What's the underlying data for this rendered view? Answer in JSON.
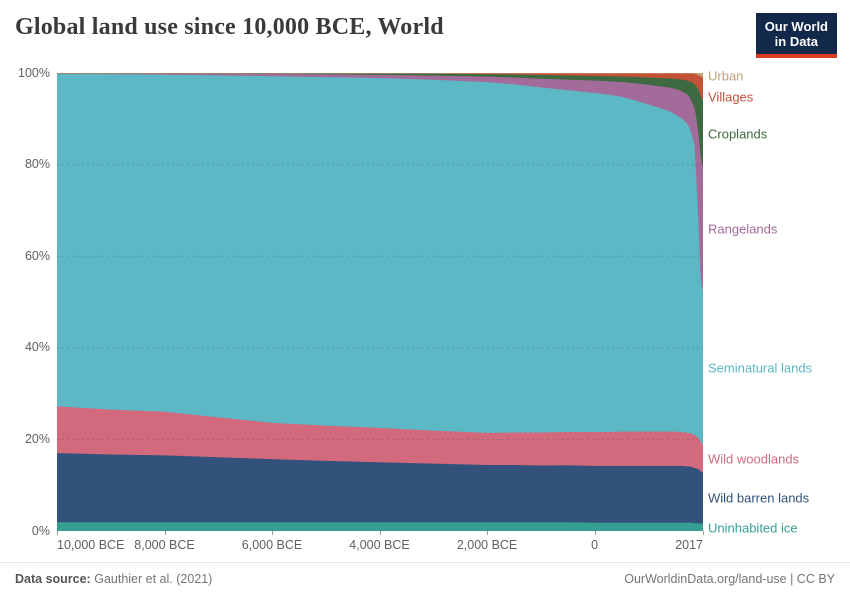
{
  "header": {
    "title": "Global land use since 10,000 BCE, World",
    "logo": {
      "line1": "Our World",
      "line2": "in Data",
      "bg_color": "#12294b",
      "accent_color": "#dc3a23"
    }
  },
  "footer": {
    "source_label": "Data source:",
    "source_value": "Gauthier et al. (2021)",
    "citation": "OurWorldinData.org/land-use | CC BY"
  },
  "chart_data": {
    "type": "area",
    "stacking": "percent",
    "title": "Global land use since 10,000 BCE, World",
    "xlim": [
      -10000,
      2017
    ],
    "ylim": [
      0,
      100
    ],
    "grid": "dashed-horizontal",
    "legend_position": "right-edge-labels",
    "x": [
      -10000,
      -9000,
      -8000,
      -7000,
      -6000,
      -5000,
      -4000,
      -3000,
      -2000,
      -1500,
      -1000,
      -500,
      0,
      250,
      500,
      750,
      1000,
      1200,
      1400,
      1500,
      1600,
      1700,
      1750,
      1800,
      1850,
      1880,
      1900,
      1920,
      1940,
      1950,
      1960,
      1970,
      1980,
      1990,
      2000,
      2010,
      2017
    ],
    "x_ticks": [
      {
        "value": -10000,
        "label": "10,000 BCE"
      },
      {
        "value": -8000,
        "label": "8,000 BCE"
      },
      {
        "value": -6000,
        "label": "6,000 BCE"
      },
      {
        "value": -4000,
        "label": "4,000 BCE"
      },
      {
        "value": -2000,
        "label": "2,000 BCE"
      },
      {
        "value": 0,
        "label": "0"
      },
      {
        "value": 2017,
        "label": "2017"
      }
    ],
    "y_ticks": [
      {
        "value": 0,
        "label": "0%"
      },
      {
        "value": 20,
        "label": "20%"
      },
      {
        "value": 40,
        "label": "40%"
      },
      {
        "value": 60,
        "label": "60%"
      },
      {
        "value": 80,
        "label": "80%"
      },
      {
        "value": 100,
        "label": "100%"
      }
    ],
    "series": [
      {
        "name": "Uninhabited ice",
        "color": "#35a091",
        "values": [
          1.8,
          1.8,
          1.8,
          1.8,
          1.8,
          1.8,
          1.8,
          1.8,
          1.8,
          1.8,
          1.8,
          1.8,
          1.7,
          1.7,
          1.7,
          1.7,
          1.7,
          1.7,
          1.7,
          1.7,
          1.7,
          1.7,
          1.7,
          1.7,
          1.6,
          1.6,
          1.6,
          1.6,
          1.6,
          1.6,
          1.6,
          1.5,
          1.5,
          1.5,
          1.5,
          1.5,
          1.5
        ]
      },
      {
        "name": "Wild barren lands",
        "color": "#32527c",
        "values": [
          15.1,
          14.8,
          14.6,
          14.2,
          13.8,
          13.4,
          13.1,
          12.8,
          12.5,
          12.5,
          12.4,
          12.4,
          12.4,
          12.4,
          12.4,
          12.4,
          12.4,
          12.4,
          12.4,
          12.4,
          12.4,
          12.3,
          12.3,
          12.2,
          12.1,
          12.0,
          11.9,
          11.8,
          11.7,
          11.6,
          11.5,
          11.4,
          11.3,
          11.3,
          11.2,
          11.2,
          11.2
        ]
      },
      {
        "name": "Wild woodlands",
        "color": "#d2697c",
        "values": [
          10.2,
          9.8,
          9.5,
          8.7,
          7.9,
          7.7,
          7.5,
          7.2,
          7.0,
          7.1,
          7.2,
          7.3,
          7.4,
          7.4,
          7.5,
          7.5,
          7.5,
          7.5,
          7.5,
          7.5,
          7.4,
          7.4,
          7.3,
          7.3,
          7.2,
          7.1,
          7.0,
          6.9,
          6.7,
          6.6,
          6.5,
          6.4,
          6.3,
          6.2,
          6.1,
          6.0,
          6.0
        ]
      },
      {
        "name": "Seminatural lands",
        "color": "#5cb8c5",
        "values": [
          72.7,
          73.3,
          73.6,
          74.7,
          75.7,
          76.1,
          76.4,
          76.6,
          76.6,
          76.0,
          75.4,
          74.6,
          74.0,
          73.7,
          73.1,
          72.3,
          71.4,
          70.7,
          69.9,
          69.2,
          68.6,
          67.7,
          67.0,
          65.3,
          63.4,
          56.9,
          52.3,
          47.6,
          41.9,
          38.9,
          36.9,
          35.8,
          34.7,
          34.2,
          33.9,
          33.9,
          33.8
        ]
      },
      {
        "name": "Rangelands",
        "color": "#a36b9a",
        "values": [
          0.1,
          0.2,
          0.3,
          0.4,
          0.5,
          0.6,
          0.7,
          0.9,
          1.2,
          1.5,
          1.9,
          2.3,
          2.7,
          2.9,
          3.2,
          3.7,
          4.3,
          4.7,
          5.2,
          5.6,
          5.9,
          6.3,
          6.6,
          7.2,
          8.0,
          13.0,
          16.0,
          19.0,
          23.0,
          25.0,
          26.0,
          26.5,
          27.0,
          27.0,
          27.0,
          26.9,
          26.8
        ]
      },
      {
        "name": "Croplands",
        "color": "#3d6a41",
        "values": [
          0.05,
          0.08,
          0.1,
          0.15,
          0.2,
          0.28,
          0.35,
          0.45,
          0.55,
          0.65,
          0.8,
          0.9,
          1.0,
          1.1,
          1.2,
          1.4,
          1.6,
          1.8,
          2.0,
          2.2,
          2.5,
          2.9,
          3.3,
          4.2,
          5.2,
          6.5,
          8.0,
          9.5,
          11.0,
          11.8,
          12.6,
          13.2,
          13.7,
          14.1,
          14.4,
          14.5,
          14.6
        ]
      },
      {
        "name": "Villages",
        "color": "#c25138",
        "values": [
          0.03,
          0.04,
          0.05,
          0.06,
          0.08,
          0.11,
          0.15,
          0.2,
          0.3,
          0.4,
          0.5,
          0.6,
          0.7,
          0.75,
          0.8,
          0.9,
          1.0,
          1.1,
          1.2,
          1.3,
          1.4,
          1.6,
          1.7,
          1.9,
          2.2,
          2.5,
          2.8,
          3.1,
          3.5,
          3.8,
          4.1,
          4.4,
          4.6,
          4.8,
          4.9,
          5.0,
          5.0
        ]
      },
      {
        "name": "Urban",
        "color": "#c3a279",
        "values": [
          0.02,
          0.02,
          0.02,
          0.02,
          0.02,
          0.02,
          0.03,
          0.03,
          0.04,
          0.04,
          0.05,
          0.06,
          0.07,
          0.07,
          0.08,
          0.08,
          0.09,
          0.09,
          0.1,
          0.1,
          0.1,
          0.12,
          0.15,
          0.2,
          0.3,
          0.38,
          0.45,
          0.55,
          0.65,
          0.7,
          0.8,
          0.85,
          0.9,
          0.95,
          1.0,
          1.05,
          1.1
        ]
      }
    ]
  }
}
